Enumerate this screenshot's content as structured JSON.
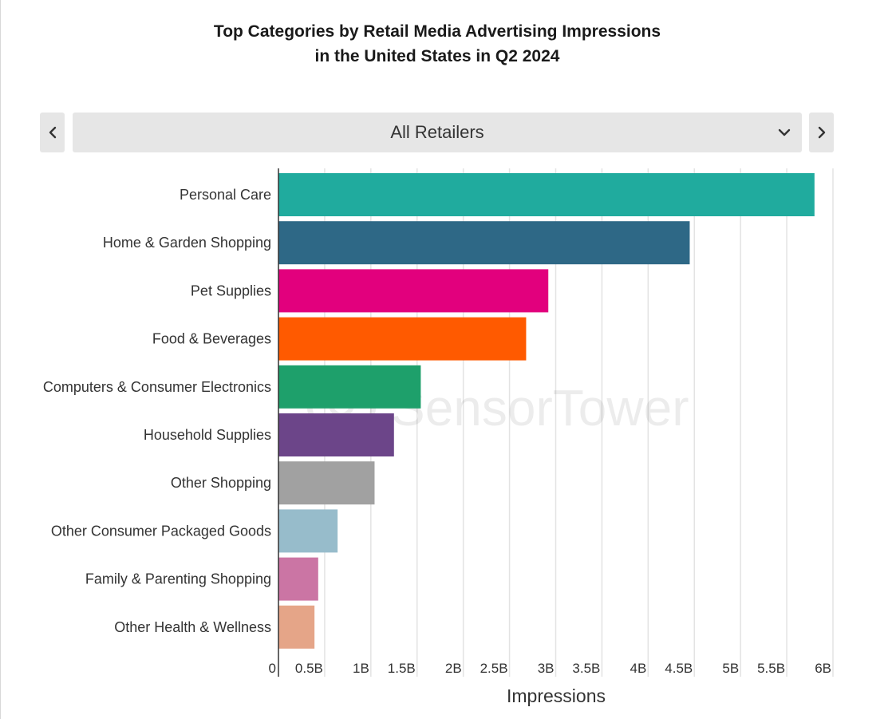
{
  "retailer_selector": {
    "selected": "All Retailers",
    "prev_icon": "chevron-left-icon",
    "next_icon": "chevron-right-icon",
    "dropdown_icon": "chevron-down-icon"
  },
  "watermark": "SensorTower",
  "chart_data": {
    "type": "bar",
    "orientation": "horizontal",
    "title": [
      "Top Categories by Retail Media Advertising Impressions",
      "in the United States in Q2 2024"
    ],
    "xlabel": "Impressions",
    "ylabel": "",
    "xlim": [
      0,
      6
    ],
    "x_unit": "B",
    "x_ticks": [
      0,
      0.5,
      1,
      1.5,
      2,
      2.5,
      3,
      3.5,
      4,
      4.5,
      5,
      5.5,
      6
    ],
    "x_tick_labels": [
      "0",
      "0.5B",
      "1B",
      "1.5B",
      "2B",
      "2.5B",
      "3B",
      "3.5B",
      "4B",
      "4.5B",
      "5B",
      "5.5B",
      "6B"
    ],
    "grid": true,
    "categories": [
      "Personal Care",
      "Home & Garden Shopping",
      "Pet Supplies",
      "Food & Beverages",
      "Computers & Consumer Electronics",
      "Household Supplies",
      "Other Shopping",
      "Other Consumer Packaged Goods",
      "Family & Parenting Shopping",
      "Other Health & Wellness"
    ],
    "values": [
      5.8,
      4.45,
      2.92,
      2.68,
      1.54,
      1.25,
      1.04,
      0.64,
      0.43,
      0.39
    ],
    "colors": [
      "#20ab9e",
      "#2e6886",
      "#e2007d",
      "#ff5a00",
      "#1ea06b",
      "#6c4589",
      "#a1a1a1",
      "#97bccb",
      "#cb75a4",
      "#e5a588"
    ]
  }
}
